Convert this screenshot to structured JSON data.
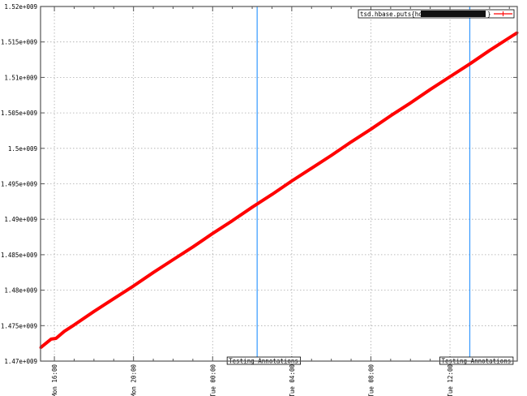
{
  "chart_data": {
    "type": "line",
    "title": "",
    "xlabel": "",
    "ylabel": "",
    "xlim": [
      "Mon 15:18",
      "Tue 15:24"
    ],
    "ylim": [
      1470000000,
      1520000000
    ],
    "grid": true,
    "legend_position": "top-right",
    "y_ticks": [
      "1.47e+009",
      "1.475e+009",
      "1.48e+009",
      "1.485e+009",
      "1.49e+009",
      "1.495e+009",
      "1.5e+009",
      "1.505e+009",
      "1.51e+009",
      "1.515e+009",
      "1.52e+009"
    ],
    "y_tick_values": [
      1470000000,
      1475000000,
      1480000000,
      1485000000,
      1490000000,
      1495000000,
      1500000000,
      1505000000,
      1510000000,
      1515000000,
      1520000000
    ],
    "x_ticks": [
      "Mon 16:00",
      "Mon 20:00",
      "Tue 00:00",
      "Tue 04:00",
      "Tue 08:00",
      "Tue 12:00"
    ],
    "series": [
      {
        "name": "tsd.hbase.puts{host=",
        "name_suffix": "}",
        "color": "#ff0000",
        "x": [
          "Mon 15:18",
          "Mon 15:50",
          "Mon 16:05",
          "Mon 16:30",
          "Mon 17:00",
          "Mon 18:00",
          "Mon 19:00",
          "Mon 20:00",
          "Mon 21:00",
          "Mon 22:00",
          "Mon 23:00",
          "Tue 00:00",
          "Tue 01:00",
          "Tue 02:00",
          "Tue 03:00",
          "Tue 04:00",
          "Tue 05:00",
          "Tue 06:00",
          "Tue 07:00",
          "Tue 08:00",
          "Tue 09:00",
          "Tue 10:00",
          "Tue 11:00",
          "Tue 12:00",
          "Tue 13:00",
          "Tue 14:00",
          "Tue 15:00",
          "Tue 15:24"
        ],
        "values": [
          1471900000,
          1473100000,
          1473200000,
          1474200000,
          1475100000,
          1477000000,
          1478800000,
          1480600000,
          1482500000,
          1484300000,
          1486100000,
          1488000000,
          1489800000,
          1491700000,
          1493500000,
          1495400000,
          1497200000,
          1499000000,
          1500900000,
          1502700000,
          1504600000,
          1506400000,
          1508300000,
          1510100000,
          1511900000,
          1513800000,
          1515600000,
          1516300000
        ]
      }
    ],
    "annotations": [
      {
        "x": "Tue 02:15",
        "label": "Testing Annotations",
        "color": "#3399ff"
      },
      {
        "x": "Tue 13:00",
        "label": "Testing Annotations",
        "color": "#3399ff"
      }
    ]
  }
}
